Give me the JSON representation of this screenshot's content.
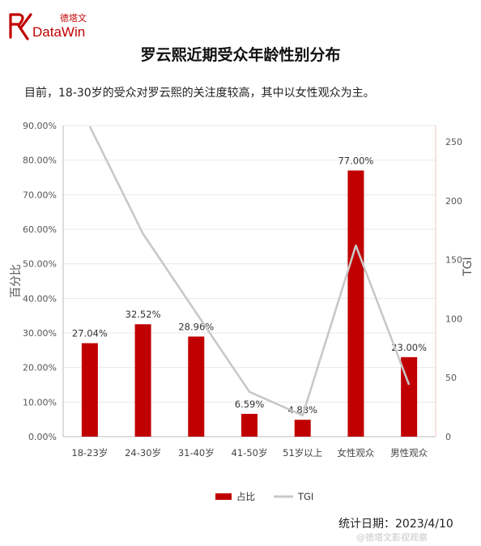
{
  "brand": {
    "name_cn": "德塔文",
    "name_en": "DataWin"
  },
  "title": "罗云熙近期受众年龄性别分布",
  "subtitle": "目前，18-30岁的受众对罗云熙的关注度较高，其中以女性观众为主。",
  "footer": {
    "date_label": "统计日期：2023/4/10",
    "watermark": "@德塔文影视观察"
  },
  "colors": {
    "bar": "#c00000",
    "line": "#c8c8c8",
    "grid": "#e8e8e8"
  },
  "chart_data": {
    "type": "bar",
    "categories": [
      "18-23岁",
      "24-30岁",
      "31-40岁",
      "41-50岁",
      "51岁以上",
      "女性观众",
      "男性观众"
    ],
    "series": [
      {
        "name": "占比",
        "type": "bar",
        "axis": "left",
        "values": [
          27.04,
          32.52,
          28.96,
          6.59,
          4.88,
          77.0,
          23.0
        ],
        "labels": [
          "27.04%",
          "32.52%",
          "28.96%",
          "6.59%",
          "4.88%",
          "77.00%",
          "23.00%"
        ]
      },
      {
        "name": "TGI",
        "type": "line",
        "axis": "right",
        "values": [
          263,
          172,
          105,
          38,
          18,
          162,
          44
        ]
      }
    ],
    "ylabel": "百分比",
    "y2label": "TGI",
    "ylim": [
      0,
      90
    ],
    "y2lim": [
      0,
      263.7
    ],
    "yticks": [
      "0.00%",
      "10.00%",
      "20.00%",
      "30.00%",
      "40.00%",
      "50.00%",
      "60.00%",
      "70.00%",
      "80.00%",
      "90.00%"
    ],
    "y2ticks": [
      "0",
      "50",
      "100",
      "150",
      "200",
      "250"
    ],
    "grid": true,
    "legend_position": "bottom"
  }
}
